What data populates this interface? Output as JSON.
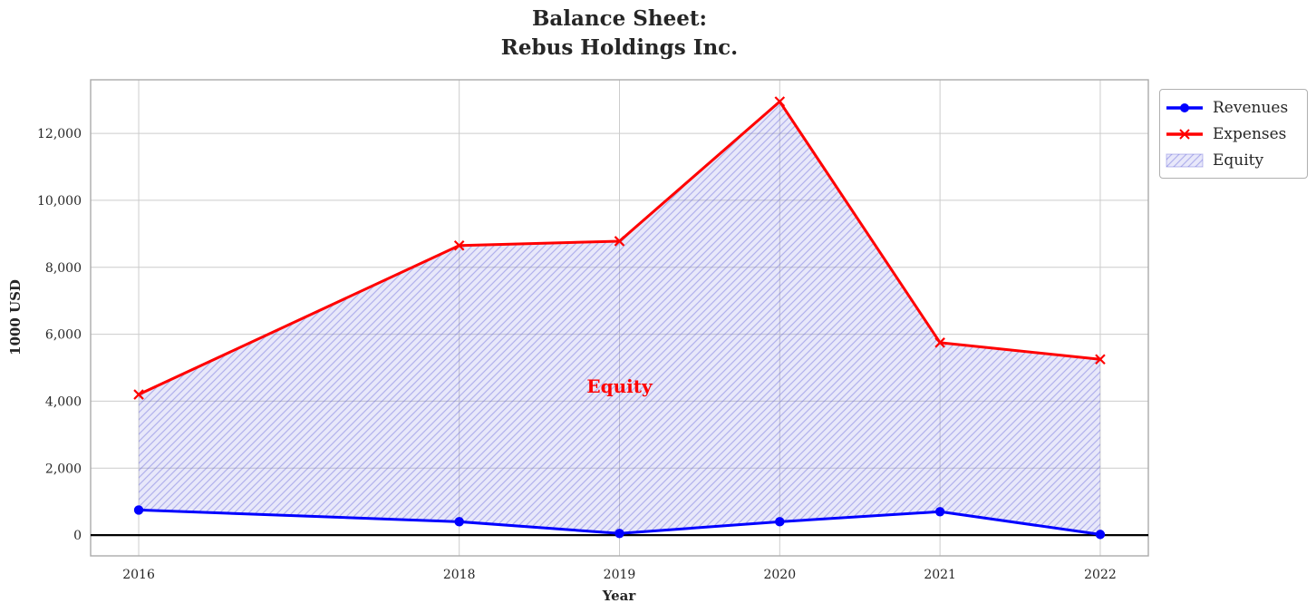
{
  "chart_data": {
    "type": "line",
    "title_lines": [
      "Balance Sheet:",
      "Rebus Holdings Inc."
    ],
    "xlabel": "Year",
    "ylabel": "1000 USD",
    "x": [
      2016,
      2018,
      2019,
      2020,
      2021,
      2022
    ],
    "series": [
      {
        "name": "Revenues",
        "color": "#0000ff",
        "marker": "circle",
        "values": [
          750,
          400,
          50,
          400,
          700,
          20
        ]
      },
      {
        "name": "Expenses",
        "color": "#ff0000",
        "marker": "x",
        "values": [
          4200,
          8650,
          8780,
          12950,
          5750,
          5250
        ]
      }
    ],
    "fill_between": {
      "name": "Equity",
      "between": [
        "Revenues",
        "Expenses"
      ],
      "fill_color": "rgba(92,92,219,0.14)",
      "hatch_color": "rgba(88,88,214,0.38)",
      "hatch_style": "//"
    },
    "annotation": {
      "text": "Equity",
      "x": 2019,
      "y": 4450,
      "color": "#ff0000"
    },
    "xticks": {
      "values": [
        2016,
        2018,
        2019,
        2020,
        2021,
        2022
      ],
      "labels": [
        "2016",
        "2018",
        "2019",
        "2020",
        "2021",
        "2022"
      ]
    },
    "yticks": {
      "values": [
        0,
        2000,
        4000,
        6000,
        8000,
        10000,
        12000
      ],
      "labels": [
        "0",
        "2,000",
        "4,000",
        "6,000",
        "8,000",
        "10,000",
        "12,000"
      ]
    },
    "xlim": [
      2015.7,
      2022.3
    ],
    "ylim": [
      -620,
      13600
    ],
    "grid": true,
    "zero_line": true,
    "legend": {
      "position": "outside-upper-right",
      "entries": [
        "Revenues",
        "Expenses",
        "Equity"
      ]
    },
    "colors": {
      "grid": "#cccccc",
      "spine": "#ababab",
      "text": "#262626",
      "zero_line": "#000000",
      "background": "#ffffff"
    }
  }
}
